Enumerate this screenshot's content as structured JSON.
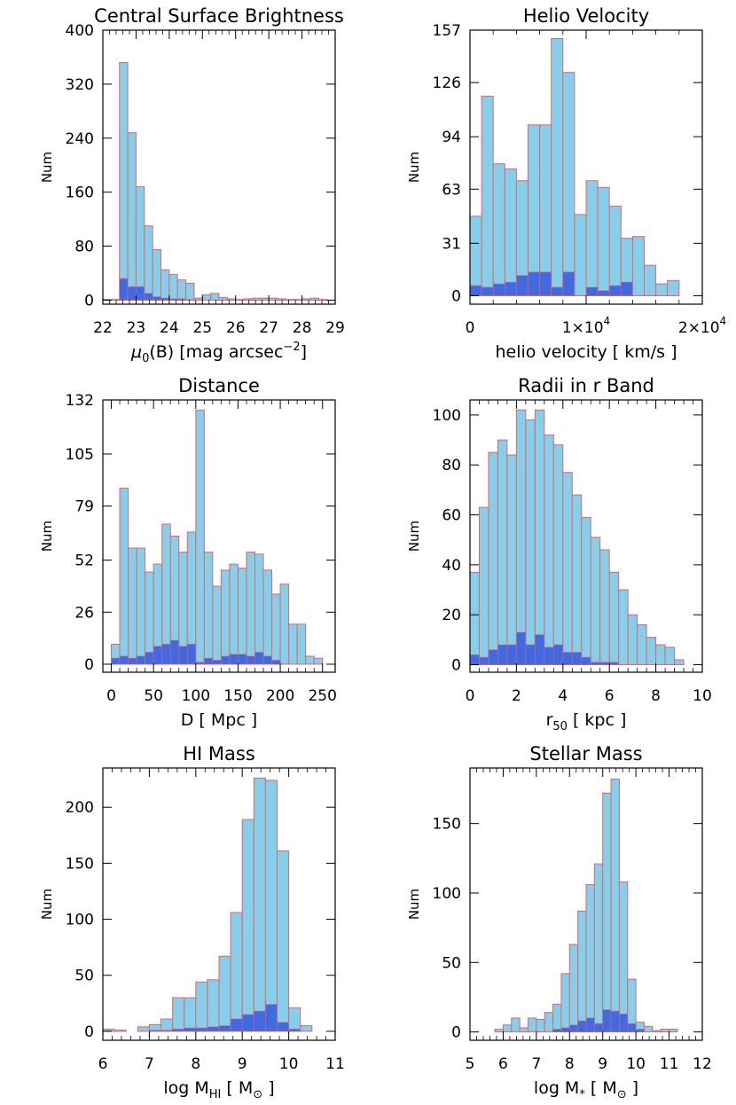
{
  "figure": {
    "colors": {
      "bar_fill": "#87ceeb",
      "bar_edge": "#e06666",
      "sub_fill": "#4169e1",
      "axis": "#000000"
    }
  },
  "chart_data": [
    {
      "type": "bar",
      "title": "Central Surface Brightness",
      "xlabel": "μ0(B) [mag arcsec−2]",
      "xlabel_parts": [
        "μ",
        "0",
        "(B) [mag arcsec",
        "−2",
        "]"
      ],
      "ylabel": "Num",
      "xlim": [
        22,
        29
      ],
      "ylim": [
        -6,
        400
      ],
      "xticks": [
        22,
        23,
        24,
        25,
        26,
        27,
        28,
        29
      ],
      "xtick_labels": [
        "22",
        "23",
        "24",
        "25",
        "26",
        "27",
        "28",
        "29"
      ],
      "yticks": [
        0,
        80,
        160,
        240,
        320,
        400
      ],
      "ytick_labels": [
        "0",
        "80",
        "160",
        "240",
        "320",
        "400"
      ],
      "bin_edges": [
        22.0,
        22.5,
        22.75,
        23.0,
        23.25,
        23.5,
        23.75,
        24.0,
        24.25,
        24.5,
        24.75,
        25.0,
        25.25,
        25.5,
        25.75,
        26.0,
        26.25,
        26.5,
        26.75,
        27.0,
        27.25,
        27.5,
        27.75,
        28.0,
        28.25,
        28.5,
        28.75,
        29.0
      ],
      "series": [
        {
          "name": "",
          "values": [
            1,
            352,
            248,
            168,
            110,
            75,
            45,
            38,
            30,
            25,
            3,
            8,
            10,
            4,
            2,
            1,
            2,
            3,
            3,
            3,
            2,
            1,
            1,
            2,
            3,
            1,
            0
          ]
        },
        {
          "name": "",
          "values": [
            0,
            32,
            20,
            20,
            10,
            5,
            3,
            2,
            2,
            1,
            0,
            0,
            0,
            0,
            0,
            0,
            0,
            0,
            0,
            0,
            0,
            0,
            0,
            0,
            0,
            0,
            0
          ]
        }
      ]
    },
    {
      "type": "bar",
      "title": "Helio Velocity",
      "xlabel": "helio velocity [ km/s ]",
      "xlabel_parts": [
        "helio velocity [ km/s ]"
      ],
      "ylabel": "Num",
      "xlim": [
        0,
        20000
      ],
      "ylim": [
        -5,
        157
      ],
      "xticks": [
        0,
        10000,
        20000
      ],
      "xtick_labels": [
        "0",
        "1×10^4",
        "2×10^4"
      ],
      "yticks": [
        0,
        31,
        63,
        94,
        126,
        157
      ],
      "ytick_labels": [
        "0",
        "31",
        "63",
        "94",
        "126",
        "157"
      ],
      "bin_edges": [
        0,
        1000,
        2000,
        3000,
        4000,
        5000,
        6000,
        7000,
        8000,
        9000,
        10000,
        11000,
        12000,
        13000,
        14000,
        15000,
        16000,
        17000,
        18000,
        19000,
        20000
      ],
      "series": [
        {
          "name": "",
          "values": [
            47,
            118,
            78,
            75,
            68,
            101,
            101,
            152,
            132,
            48,
            68,
            64,
            53,
            34,
            35,
            18,
            7,
            9,
            0,
            0
          ]
        },
        {
          "name": "",
          "values": [
            6,
            5,
            7,
            8,
            12,
            14,
            14,
            5,
            14,
            0,
            5,
            3,
            6,
            8,
            0,
            0,
            0,
            0,
            0,
            0
          ]
        }
      ]
    },
    {
      "type": "bar",
      "title": "Distance",
      "xlabel": "D [ Mpc ]",
      "xlabel_parts": [
        "D [ Mpc ]"
      ],
      "ylabel": "Num",
      "xlim": [
        -10,
        265
      ],
      "ylim": [
        -4,
        132
      ],
      "xticks": [
        0,
        50,
        100,
        150,
        200,
        250
      ],
      "xtick_labels": [
        "0",
        "50",
        "100",
        "150",
        "200",
        "250"
      ],
      "yticks": [
        0,
        26,
        52,
        79,
        105,
        132
      ],
      "ytick_labels": [
        "0",
        "26",
        "52",
        "79",
        "105",
        "132"
      ],
      "bin_edges": [
        0,
        10,
        20,
        30,
        40,
        50,
        60,
        70,
        80,
        90,
        100,
        110,
        120,
        130,
        140,
        150,
        160,
        170,
        180,
        190,
        200,
        210,
        220,
        230,
        240,
        250
      ],
      "series": [
        {
          "name": "",
          "values": [
            10,
            88,
            58,
            58,
            46,
            50,
            70,
            64,
            56,
            66,
            127,
            56,
            39,
            47,
            50,
            48,
            56,
            55,
            47,
            35,
            40,
            20,
            20,
            4,
            3
          ]
        },
        {
          "name": "",
          "values": [
            3,
            4,
            3,
            4,
            6,
            9,
            10,
            12,
            9,
            10,
            1,
            3,
            2,
            4,
            5,
            5,
            4,
            6,
            4,
            2,
            0,
            0,
            0,
            0,
            0
          ]
        }
      ]
    },
    {
      "type": "bar",
      "title": "Radii in r Band",
      "xlabel": "r50 [ kpc ]",
      "xlabel_parts": [
        "r",
        "50",
        " [ kpc ]"
      ],
      "ylabel": "Num",
      "xlim": [
        0,
        10
      ],
      "ylim": [
        -3,
        106
      ],
      "xticks": [
        0,
        2,
        4,
        6,
        8,
        10
      ],
      "xtick_labels": [
        "0",
        "2",
        "4",
        "6",
        "8",
        "10"
      ],
      "yticks": [
        0,
        20,
        40,
        60,
        80,
        100
      ],
      "ytick_labels": [
        "0",
        "20",
        "40",
        "60",
        "80",
        "100"
      ],
      "bin_edges": [
        0.0,
        0.4,
        0.8,
        1.2,
        1.6,
        2.0,
        2.4,
        2.8,
        3.2,
        3.6,
        4.0,
        4.4,
        4.8,
        5.2,
        5.6,
        6.0,
        6.4,
        6.8,
        7.2,
        7.6,
        8.0,
        8.4,
        8.8,
        9.2,
        9.6,
        10.0
      ],
      "series": [
        {
          "name": "",
          "values": [
            37,
            63,
            85,
            90,
            84,
            102,
            98,
            102,
            92,
            88,
            77,
            68,
            59,
            51,
            46,
            37,
            30,
            20,
            16,
            11,
            8,
            7,
            2,
            0,
            0
          ]
        },
        {
          "name": "",
          "values": [
            4,
            3,
            6,
            8,
            8,
            13,
            8,
            12,
            7,
            8,
            5,
            5,
            3,
            1,
            1,
            1,
            0,
            0,
            0,
            0,
            0,
            0,
            0,
            0,
            0
          ]
        }
      ]
    },
    {
      "type": "bar",
      "title": "HI Mass",
      "xlabel": "log MHI [ M⊙ ]",
      "xlabel_parts": [
        "log M",
        "HI",
        " [ M",
        "⊙",
        " ]"
      ],
      "ylabel": "Num",
      "xlim": [
        6,
        11
      ],
      "ylim": [
        -8,
        235
      ],
      "xticks": [
        6,
        7,
        8,
        9,
        10,
        11
      ],
      "xtick_labels": [
        "6",
        "7",
        "8",
        "9",
        "10",
        "11"
      ],
      "yticks": [
        0,
        50,
        100,
        150,
        200
      ],
      "ytick_labels": [
        "0",
        "50",
        "100",
        "150",
        "200"
      ],
      "bin_edges": [
        6.0,
        6.25,
        6.5,
        6.75,
        7.0,
        7.25,
        7.5,
        7.75,
        8.0,
        8.25,
        8.5,
        8.75,
        9.0,
        9.25,
        9.5,
        9.75,
        10.0,
        10.25,
        10.5,
        10.75,
        11.0
      ],
      "series": [
        {
          "name": "",
          "values": [
            2,
            1,
            0,
            4,
            6,
            11,
            30,
            30,
            44,
            46,
            67,
            106,
            189,
            226,
            224,
            161,
            21,
            5,
            0,
            0
          ]
        },
        {
          "name": "",
          "values": [
            0,
            0,
            0,
            0,
            1,
            1,
            2,
            3,
            3,
            4,
            5,
            11,
            15,
            18,
            24,
            8,
            2,
            0,
            0,
            0
          ]
        }
      ]
    },
    {
      "type": "bar",
      "title": "Stellar Mass",
      "xlabel": "log M* [ M⊙ ]",
      "xlabel_parts": [
        "log M",
        "*",
        " [ M",
        "⊙",
        " ]"
      ],
      "ylabel": "Num",
      "xlim": [
        5,
        12
      ],
      "ylim": [
        -6,
        190
      ],
      "xticks": [
        5,
        6,
        7,
        8,
        9,
        10,
        11,
        12
      ],
      "xtick_labels": [
        "5",
        "6",
        "7",
        "8",
        "9",
        "10",
        "11",
        "12"
      ],
      "yticks": [
        0,
        50,
        100,
        150
      ],
      "ytick_labels": [
        "0",
        "50",
        "100",
        "150"
      ],
      "bin_edges": [
        5.0,
        5.25,
        5.5,
        5.75,
        6.0,
        6.25,
        6.5,
        6.75,
        7.0,
        7.25,
        7.5,
        7.75,
        8.0,
        8.25,
        8.5,
        8.75,
        9.0,
        9.25,
        9.5,
        9.75,
        10.0,
        10.25,
        10.5,
        10.75,
        11.0,
        11.25,
        11.5,
        11.75,
        12.0
      ],
      "series": [
        {
          "name": "",
          "values": [
            0,
            0,
            0,
            2,
            5,
            10,
            3,
            10,
            9,
            14,
            20,
            42,
            63,
            87,
            106,
            121,
            172,
            182,
            108,
            38,
            7,
            4,
            1,
            2,
            2,
            0,
            0,
            0
          ]
        },
        {
          "name": "",
          "values": [
            0,
            0,
            0,
            0,
            0,
            0,
            0,
            0,
            0,
            0,
            2,
            3,
            5,
            8,
            10,
            6,
            16,
            15,
            13,
            6,
            2,
            0,
            0,
            0,
            0,
            0,
            0,
            0
          ]
        }
      ]
    }
  ]
}
